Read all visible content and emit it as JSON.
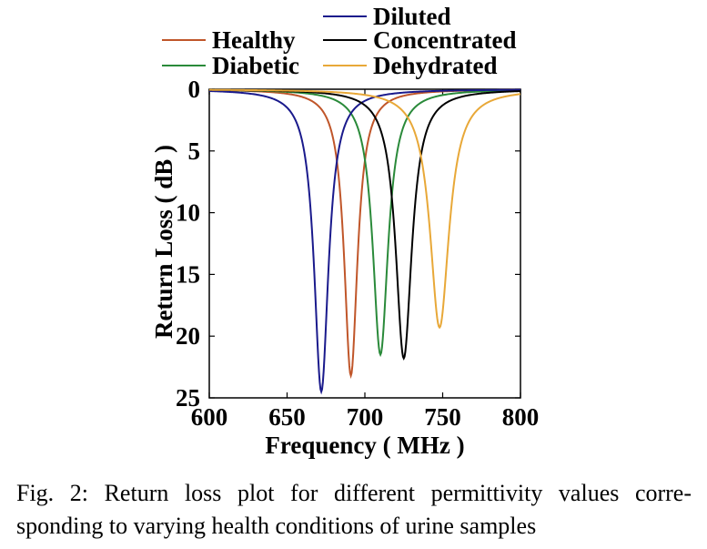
{
  "chart_data": {
    "type": "line",
    "xlabel": "Frequency ( MHz )",
    "ylabel": "Return Loss ( dB )",
    "xlim": [
      600,
      800
    ],
    "ylim": [
      0,
      25
    ],
    "y_inverted": true,
    "x_ticks": [
      600,
      650,
      700,
      750,
      800
    ],
    "y_ticks": [
      0,
      5,
      10,
      15,
      20,
      25
    ],
    "legend_position": "top-center",
    "series": [
      {
        "name": "Healthy",
        "color": "#c0562a",
        "f0": 691,
        "peak": 23.2,
        "gamma": 5.2
      },
      {
        "name": "Diabetic",
        "color": "#2a8a3a",
        "f0": 710,
        "peak": 21.5,
        "gamma": 6.0
      },
      {
        "name": "Diluted",
        "color": "#1a1a8c",
        "f0": 672,
        "peak": 24.5,
        "gamma": 5.6
      },
      {
        "name": "Concentrated",
        "color": "#000000",
        "f0": 725,
        "peak": 21.8,
        "gamma": 6.3
      },
      {
        "name": "Dehydrated",
        "color": "#e8a838",
        "f0": 748,
        "peak": 19.3,
        "gamma": 7.5
      }
    ]
  },
  "caption": {
    "line1": "Fig. 2: Return loss plot for different permittivity values corre-",
    "line2": "sponding to varying health conditions of urine samples"
  }
}
